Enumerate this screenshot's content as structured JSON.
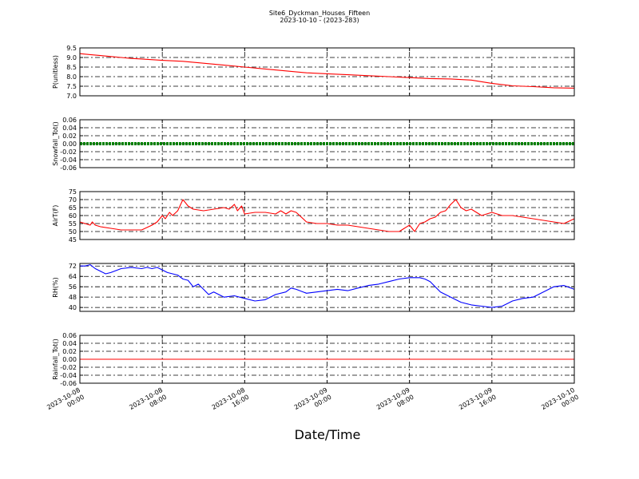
{
  "chart_data": {
    "type": "line",
    "title": "Site6_Dyckman_Houses_Fifteen",
    "subtitle": "2023-10-10 - (2023-283)",
    "xlabel": "Date/Time",
    "x_tick_labels": [
      [
        "2023-10-08",
        "00:00"
      ],
      [
        "2023-10-08",
        "08:00"
      ],
      [
        "2023-10-08",
        "16:00"
      ],
      [
        "2023-10-09",
        "00:00"
      ],
      [
        "2023-10-09",
        "08:00"
      ],
      [
        "2023-10-09",
        "16:00"
      ],
      [
        "2023-10-10",
        "00:00"
      ]
    ],
    "x_hours_range": [
      0,
      48
    ],
    "grid": true,
    "panels": [
      {
        "ylabel": "P(unitless)",
        "ylim": [
          7.0,
          9.5
        ],
        "yticks": [
          "9.5",
          "9.0",
          "8.5",
          "8.0",
          "7.5",
          "7.0"
        ],
        "color": "#ff0000",
        "style": "line",
        "x": [
          0,
          1,
          2,
          3,
          4,
          5,
          6,
          8,
          10,
          12,
          14,
          16,
          18,
          20,
          22,
          24,
          26,
          28,
          30,
          32,
          34,
          36,
          38,
          40,
          42,
          44,
          46,
          48
        ],
        "y": [
          9.2,
          9.15,
          9.1,
          9.05,
          9.0,
          8.95,
          8.92,
          8.85,
          8.8,
          8.7,
          8.6,
          8.5,
          8.4,
          8.3,
          8.2,
          8.15,
          8.1,
          8.05,
          8.0,
          7.95,
          7.9,
          7.88,
          7.82,
          7.65,
          7.52,
          7.48,
          7.42,
          7.4
        ]
      },
      {
        "ylabel": "Snowfall_Tot()",
        "ylim": [
          -0.06,
          0.06
        ],
        "yticks": [
          "0.06",
          "0.04",
          "0.02",
          "0.00",
          "-0.02",
          "-0.04",
          "-0.06"
        ],
        "color": "#008000",
        "style": "thick",
        "x": [
          0,
          48
        ],
        "y": [
          0.0,
          0.0
        ]
      },
      {
        "ylabel": "AirT(F)",
        "ylim": [
          45,
          75
        ],
        "yticks": [
          "75",
          "70",
          "65",
          "60",
          "55",
          "50",
          "45"
        ],
        "color": "#ff0000",
        "style": "line",
        "x": [
          0,
          0.5,
          1,
          1.2,
          1.5,
          2,
          3,
          4,
          5,
          6,
          7,
          7.5,
          8,
          8.3,
          8.7,
          9,
          9.5,
          10,
          10.5,
          11,
          12,
          13,
          14,
          14.5,
          15,
          15.3,
          15.7,
          16,
          17,
          18,
          19,
          19.5,
          20,
          20.5,
          21,
          22,
          23,
          24,
          25,
          26,
          27,
          28,
          29,
          30,
          30.5,
          31,
          31.5,
          32,
          32.5,
          33,
          33.5,
          34,
          34.5,
          35,
          35.5,
          36,
          36.5,
          37,
          37.5,
          38,
          39,
          40,
          41,
          42,
          43,
          44,
          45,
          46,
          47,
          48
        ],
        "y": [
          56,
          55,
          54,
          56,
          54,
          53,
          52,
          51,
          51,
          51,
          54,
          56,
          60,
          58,
          62,
          60,
          63,
          70,
          66,
          64,
          63,
          64,
          65,
          64,
          67,
          63,
          66,
          61,
          62,
          62,
          61,
          63,
          61,
          63,
          62,
          56,
          55,
          55,
          54,
          54,
          53,
          52,
          51,
          50,
          50,
          50,
          52,
          54,
          50,
          55,
          56,
          58,
          59,
          62,
          63,
          67,
          70,
          65,
          63,
          64,
          60,
          62,
          60,
          60,
          59,
          58,
          57,
          56,
          55,
          58
        ]
      },
      {
        "ylabel": "RH(%)",
        "ylim": [
          37,
          74
        ],
        "yticks": [
          "72",
          "64",
          "56",
          "48",
          "40"
        ],
        "color": "#0000ff",
        "style": "line",
        "x": [
          0,
          0.5,
          1,
          1.5,
          2,
          2.5,
          3,
          4,
          5,
          6,
          6.5,
          7,
          7.5,
          8,
          8.5,
          9,
          9.5,
          10,
          10.5,
          11,
          11.5,
          12,
          12.5,
          13,
          14,
          15,
          16,
          17,
          18,
          19,
          20,
          20.5,
          21,
          22,
          23,
          24,
          25,
          26,
          27,
          28,
          29,
          30,
          31,
          32,
          33,
          33.5,
          34,
          35,
          36,
          37,
          38,
          39,
          40,
          41,
          42,
          43,
          44,
          45,
          46,
          47,
          48
        ],
        "y": [
          72,
          72,
          73,
          70,
          68,
          66,
          67,
          70,
          71,
          70,
          71,
          70,
          71,
          69,
          67,
          66,
          65,
          62,
          61,
          56,
          58,
          54,
          50,
          52,
          48,
          49,
          47,
          45,
          46,
          50,
          52,
          55,
          54,
          51,
          52,
          53,
          54,
          53,
          55,
          57,
          58,
          60,
          62,
          63,
          63,
          62,
          60,
          52,
          48,
          44,
          42,
          41,
          40,
          41,
          45,
          47,
          48,
          52,
          56,
          57,
          54
        ]
      },
      {
        "ylabel": "Rainfall_Tot()",
        "ylim": [
          -0.06,
          0.06
        ],
        "yticks": [
          "0.06",
          "0.04",
          "0.02",
          "0.00",
          "-0.02",
          "-0.04",
          "-0.06"
        ],
        "color": "#ff0000",
        "style": "line",
        "x": [
          0,
          48
        ],
        "y": [
          0.0,
          0.0
        ]
      }
    ]
  }
}
